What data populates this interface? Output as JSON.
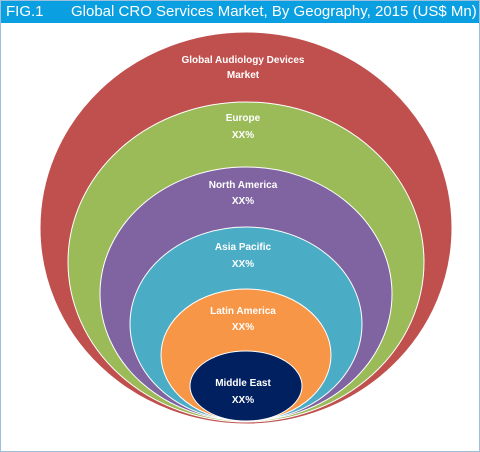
{
  "figure": {
    "label": "FIG.1",
    "title": "Global CRO Services Market, By Geography, 2015 (US$ Mn)"
  },
  "rings": [
    {
      "name": "Global Audiology Devices",
      "name_line2": "Market",
      "value": "",
      "color": "#c0504d"
    },
    {
      "name": "Europe",
      "value": "XX%",
      "color": "#9bbb59"
    },
    {
      "name": "North America",
      "value": "XX%",
      "color": "#8064a2"
    },
    {
      "name": "Asia Pacific",
      "value": "XX%",
      "color": "#4bacc6"
    },
    {
      "name": "Latin America",
      "value": "XX%",
      "color": "#f79646"
    },
    {
      "name": "Middle East",
      "value": "XX%",
      "color": "#002060"
    }
  ]
}
